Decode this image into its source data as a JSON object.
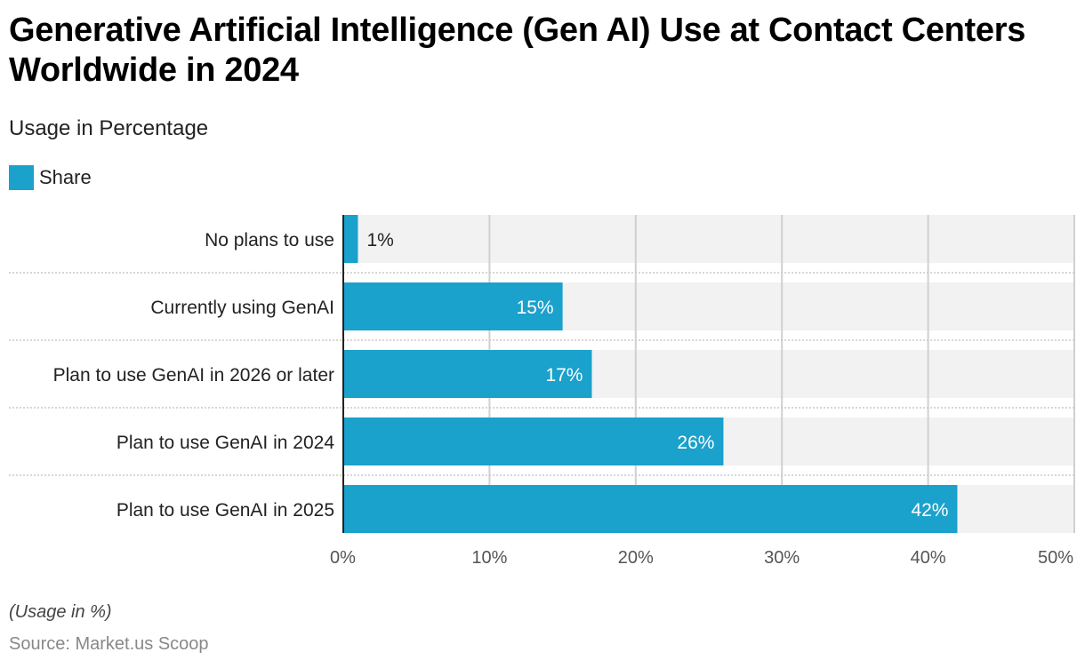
{
  "colors": {
    "bar": "#1aa1cc",
    "band": "#f2f2f2",
    "grid": "#d0d0d0",
    "axis": "#222222"
  },
  "chart_data": {
    "type": "bar",
    "orientation": "horizontal",
    "title": "Generative Artificial Intelligence (Gen AI) Use at Contact Centers Worldwide in 2024",
    "subtitle": "Usage in Percentage",
    "legend": {
      "position": "top-left",
      "entries": [
        "Share"
      ]
    },
    "categories": [
      "No plans to use",
      "Currently using GenAI",
      "Plan to use GenAI in 2026 or later",
      "Plan to use GenAI in 2024",
      "Plan to use GenAI in 2025"
    ],
    "series": [
      {
        "name": "Share",
        "values": [
          1,
          15,
          17,
          26,
          42
        ]
      }
    ],
    "data_labels": [
      "1%",
      "15%",
      "17%",
      "26%",
      "42%"
    ],
    "xlim": [
      0,
      50
    ],
    "x_ticks": [
      0,
      10,
      20,
      30,
      40,
      50
    ],
    "x_tick_labels": [
      "0%",
      "10%",
      "20%",
      "30%",
      "40%",
      "50%"
    ],
    "xlabel": "",
    "ylabel": "",
    "grid": true,
    "note": "(Usage in %)",
    "source": "Source: Market.us Scoop"
  }
}
